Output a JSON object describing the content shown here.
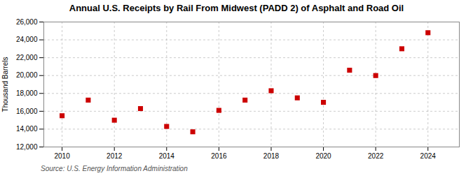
{
  "chart_data": {
    "type": "scatter",
    "title": "Annual U.S. Receipts by Rail From Midwest (PADD 2) of Asphalt and Road Oil",
    "ylabel": "Thousand Barrels",
    "source": "Source: U.S. Energy Information Administration",
    "x": [
      2010,
      2011,
      2012,
      2013,
      2014,
      2015,
      2016,
      2017,
      2018,
      2019,
      2020,
      2021,
      2022,
      2023,
      2024
    ],
    "values": [
      15500,
      17250,
      15000,
      16300,
      14300,
      13700,
      16100,
      17250,
      18300,
      17500,
      17000,
      20600,
      20000,
      23000,
      24800
    ],
    "color": "#cc0000",
    "marker": "square",
    "xlim": [
      2009.3,
      2025.2
    ],
    "xticks": [
      2010,
      2012,
      2014,
      2016,
      2018,
      2020,
      2022,
      2024
    ],
    "ylim": [
      12000,
      26000
    ],
    "yticks": [
      {
        "value": 12000,
        "label": "12,000"
      },
      {
        "value": 14000,
        "label": "14,000"
      },
      {
        "value": 16000,
        "label": "16,000"
      },
      {
        "value": 18000,
        "label": "18,000"
      },
      {
        "value": 20000,
        "label": "20,000"
      },
      {
        "value": 22000,
        "label": "22,000"
      },
      {
        "value": 24000,
        "label": "24,000"
      },
      {
        "value": 26000,
        "label": "26,000"
      }
    ],
    "grid": true
  }
}
